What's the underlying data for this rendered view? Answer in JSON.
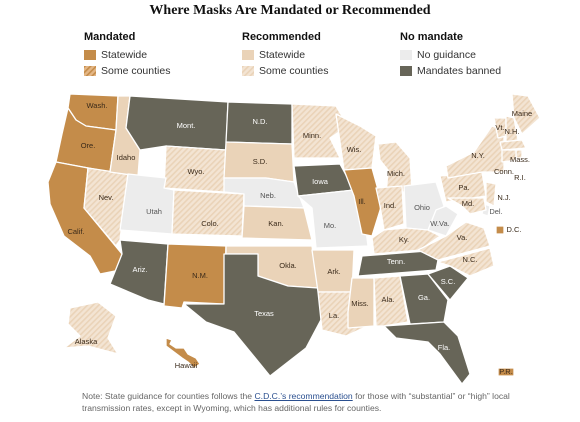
{
  "title": "Where Masks Are Mandated or Recommended",
  "colors": {
    "statewide_mandate": "#c48c4a",
    "some_counties_mandate": "#e4b685",
    "statewide_recommended": "#ead3b8",
    "some_counties_recommended": "#f3e4d3",
    "no_guidance": "#ececec",
    "mandates_banned": "#676558"
  },
  "legend": {
    "mandated": {
      "heading": "Mandated",
      "items": [
        {
          "label": "Statewide",
          "category": "statewide_mandate"
        },
        {
          "label": "Some counties",
          "category": "some_counties_mandate"
        }
      ]
    },
    "recommended": {
      "heading": "Recommended",
      "items": [
        {
          "label": "Statewide",
          "category": "statewide_recommended"
        },
        {
          "label": "Some counties",
          "category": "some_counties_recommended"
        }
      ]
    },
    "no_mandate": {
      "heading": "No mandate",
      "items": [
        {
          "label": "No guidance",
          "category": "no_guidance"
        },
        {
          "label": "Mandates banned",
          "category": "mandates_banned"
        }
      ]
    }
  },
  "states": [
    {
      "label": "Wash.",
      "category": "statewide_mandate"
    },
    {
      "label": "Ore.",
      "category": "statewide_mandate"
    },
    {
      "label": "Calif.",
      "category": "statewide_mandate"
    },
    {
      "label": "Nev.",
      "category": "some_counties_recommended"
    },
    {
      "label": "Idaho",
      "category": "statewide_recommended"
    },
    {
      "label": "Mont.",
      "category": "mandates_banned"
    },
    {
      "label": "Wyo.",
      "category": "some_counties_recommended"
    },
    {
      "label": "Utah",
      "category": "no_guidance"
    },
    {
      "label": "Colo.",
      "category": "some_counties_recommended"
    },
    {
      "label": "Ariz.",
      "category": "mandates_banned"
    },
    {
      "label": "N.M.",
      "category": "statewide_mandate"
    },
    {
      "label": "N.D.",
      "category": "mandates_banned"
    },
    {
      "label": "S.D.",
      "category": "statewide_recommended"
    },
    {
      "label": "Neb.",
      "category": "no_guidance"
    },
    {
      "label": "Kan.",
      "category": "statewide_recommended"
    },
    {
      "label": "Okla.",
      "category": "statewide_recommended"
    },
    {
      "label": "Texas",
      "category": "mandates_banned"
    },
    {
      "label": "Minn.",
      "category": "some_counties_recommended"
    },
    {
      "label": "Iowa",
      "category": "mandates_banned"
    },
    {
      "label": "Mo.",
      "category": "no_guidance"
    },
    {
      "label": "Ark.",
      "category": "statewide_recommended"
    },
    {
      "label": "La.",
      "category": "some_counties_recommended"
    },
    {
      "label": "Wis.",
      "category": "some_counties_recommended"
    },
    {
      "label": "Ill.",
      "category": "statewide_mandate"
    },
    {
      "label": "Mich.",
      "category": "some_counties_recommended"
    },
    {
      "label": "Ind.",
      "category": "some_counties_recommended"
    },
    {
      "label": "Ohio",
      "category": "no_guidance"
    },
    {
      "label": "Ky.",
      "category": "some_counties_recommended"
    },
    {
      "label": "Tenn.",
      "category": "mandates_banned"
    },
    {
      "label": "Miss.",
      "category": "statewide_recommended"
    },
    {
      "label": "Ala.",
      "category": "some_counties_recommended"
    },
    {
      "label": "Ga.",
      "category": "mandates_banned"
    },
    {
      "label": "Fla.",
      "category": "mandates_banned"
    },
    {
      "label": "S.C.",
      "category": "mandates_banned"
    },
    {
      "label": "N.C.",
      "category": "some_counties_recommended"
    },
    {
      "label": "Va.",
      "category": "some_counties_recommended"
    },
    {
      "label": "W.Va.",
      "category": "no_guidance"
    },
    {
      "label": "Pa.",
      "category": "some_counties_recommended"
    },
    {
      "label": "N.Y.",
      "category": "some_counties_recommended"
    },
    {
      "label": "Vt.",
      "category": "some_counties_recommended"
    },
    {
      "label": "N.H.",
      "category": "some_counties_recommended"
    },
    {
      "label": "Maine",
      "category": "some_counties_recommended"
    },
    {
      "label": "Mass.",
      "category": "some_counties_recommended"
    },
    {
      "label": "R.I.",
      "category": "some_counties_recommended"
    },
    {
      "label": "Conn.",
      "category": "some_counties_recommended"
    },
    {
      "label": "N.J.",
      "category": "some_counties_recommended"
    },
    {
      "label": "Del.",
      "category": "no_guidance"
    },
    {
      "label": "Md.",
      "category": "some_counties_recommended"
    },
    {
      "label": "D.C.",
      "category": "statewide_mandate"
    },
    {
      "label": "Alaska",
      "category": "some_counties_recommended"
    },
    {
      "label": "Hawaii",
      "category": "statewide_mandate"
    },
    {
      "label": "P.R.",
      "category": "statewide_mandate"
    }
  ],
  "note": {
    "prefix": "Note: State guidance for counties follows the ",
    "link": "C.D.C.’s recommendation",
    "suffix": " for those with “substantial” or “high” local transmission rates, except in Wyoming, which has additional rules for counties."
  }
}
